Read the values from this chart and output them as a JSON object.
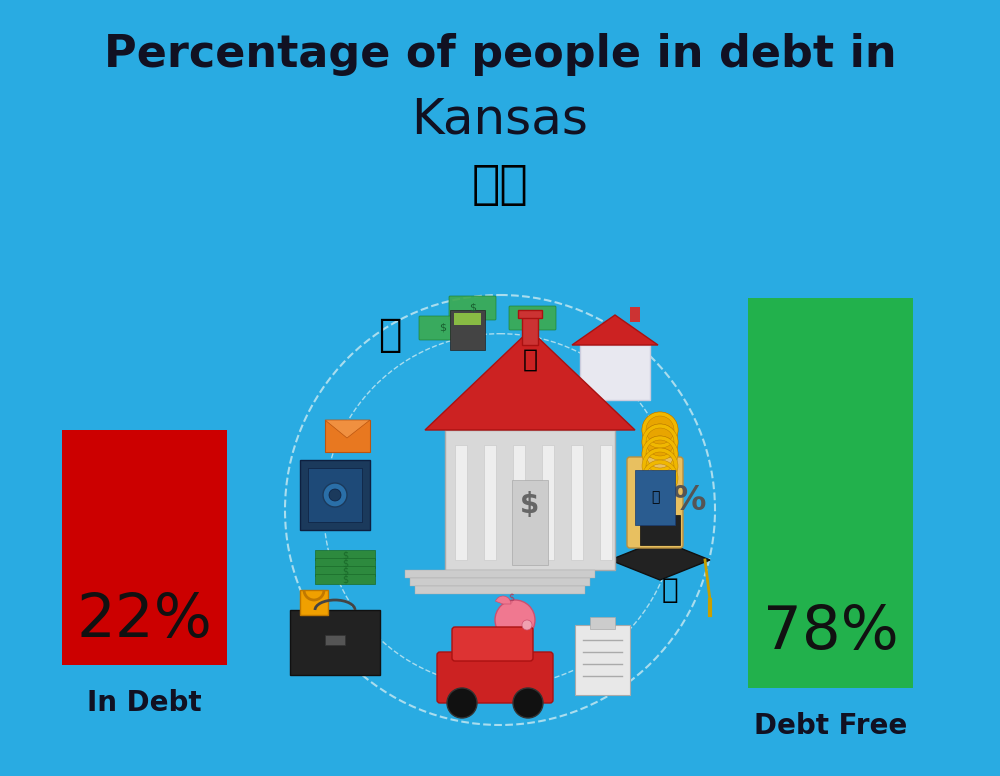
{
  "title_line1": "Percentage of people in debt in",
  "title_line2": "Kansas",
  "background_color": "#29ABE2",
  "bar1_value": 22,
  "bar1_label": "22%",
  "bar1_color": "#CC0000",
  "bar1_text": "In Debt",
  "bar2_value": 78,
  "bar2_label": "78%",
  "bar2_color": "#22B14C",
  "bar2_text": "Debt Free",
  "title_fontsize": 32,
  "subtitle_fontsize": 36,
  "bar_label_fontsize": 44,
  "bar_text_fontsize": 20,
  "title_color": "#111122",
  "bar_label_color": "#111111",
  "bar_text_color": "#111122",
  "flag_emoji": "🇺🇸",
  "fig_width": 10.0,
  "fig_height": 7.76,
  "dpi": 100
}
